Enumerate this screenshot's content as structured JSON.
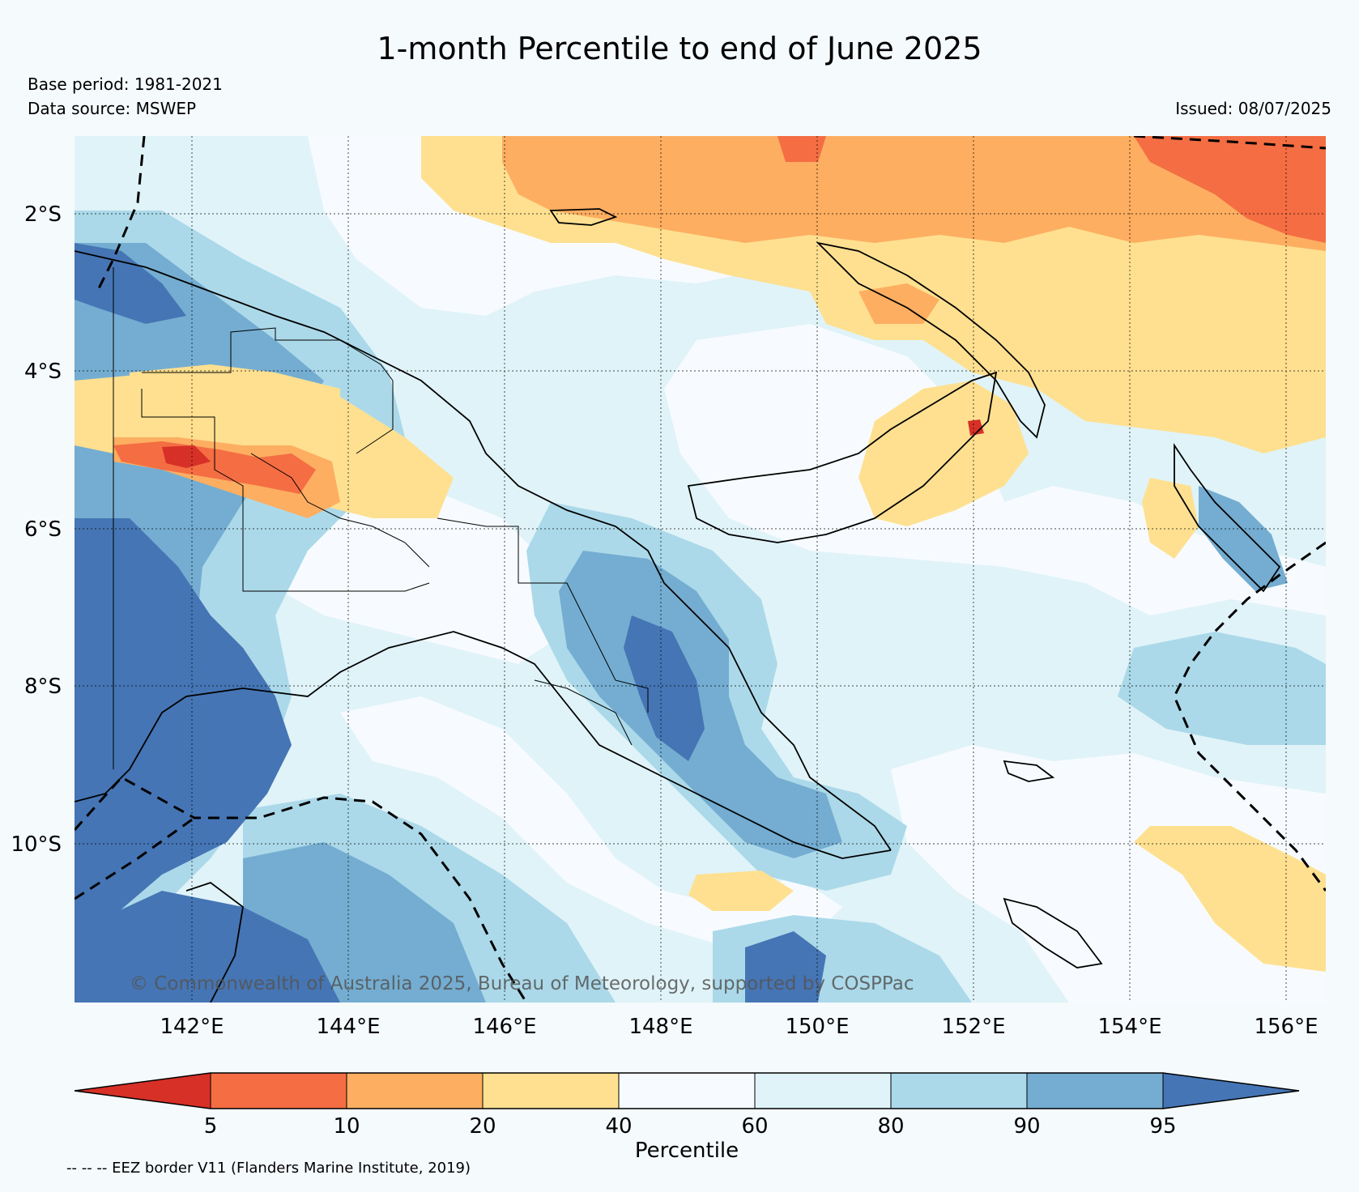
{
  "title": "1-month Percentile to end of June 2025",
  "base_period": "Base period: 1981-2021",
  "data_source": "Data source: MSWEP",
  "issued": "Issued: 08/07/2025",
  "copyright": "© Commonwealth of Australia 2025, Bureau of Meteorology, supported by COSPPac",
  "footnote": "-- -- -- EEZ border V11 (Flanders Marine Institute, 2019)",
  "map": {
    "lon_range": [
      140.4,
      156.4
    ],
    "lat_range": [
      -12.0,
      -1.0
    ],
    "lat_ticks": [
      "2°S",
      "4°S",
      "6°S",
      "8°S",
      "10°S"
    ],
    "lon_ticks": [
      "142°E",
      "144°E",
      "146°E",
      "148°E",
      "150°E",
      "152°E",
      "154°E",
      "156°E"
    ],
    "regions": [
      {
        "name": "north-ocean",
        "category": "10-20"
      },
      {
        "name": "northeast-ocean",
        "category": "5-10"
      },
      {
        "name": "new-ireland-ocean",
        "category": "20-40"
      },
      {
        "name": "southwest-gulf",
        "category": "95+"
      },
      {
        "name": "highlands",
        "category": "10-40"
      },
      {
        "name": "owen-stanley-range",
        "category": "90-95"
      },
      {
        "name": "southeast-ocean",
        "category": "20-40"
      }
    ]
  },
  "colorbar": {
    "label": "Percentile",
    "ticks": [
      "5",
      "10",
      "20",
      "40",
      "60",
      "80",
      "90",
      "95"
    ],
    "colors": [
      "#d73027",
      "#f46d43",
      "#fdae61",
      "#fee090",
      "#f7fbff",
      "#e0f3f8",
      "#abd9e9",
      "#74add1",
      "#4575b4"
    ]
  }
}
